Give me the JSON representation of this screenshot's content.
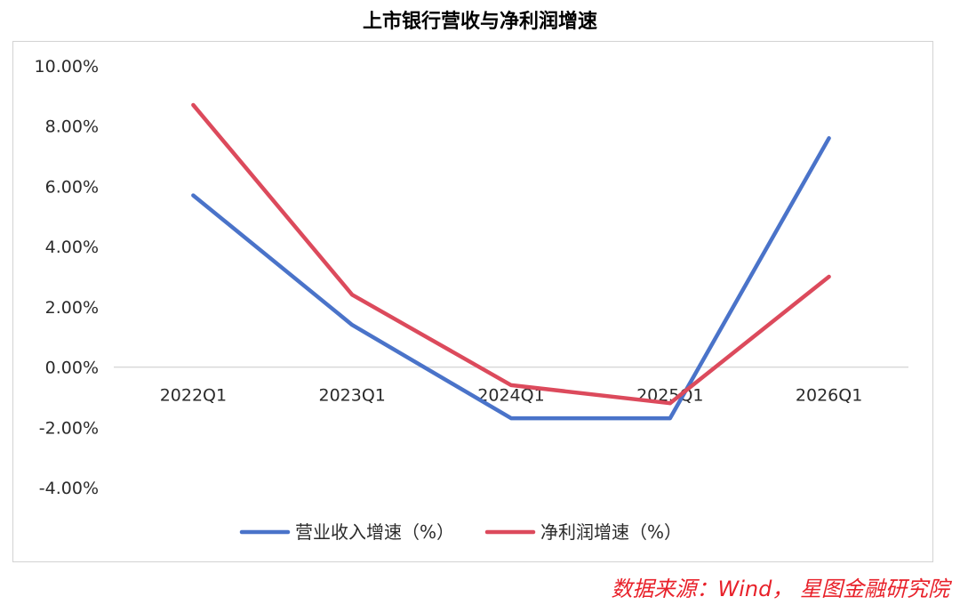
{
  "chart_data": {
    "type": "line",
    "title": "上市银行营收与净利润增速",
    "categories": [
      "2022Q1",
      "2023Q1",
      "2024Q1",
      "2025Q1",
      "2026Q1"
    ],
    "y_tick_labels": [
      "10.00%",
      "8.00%",
      "6.00%",
      "4.00%",
      "2.00%",
      "0.00%",
      "-2.00%",
      "-4.00%"
    ],
    "y_ticks": [
      10,
      8,
      6,
      4,
      2,
      0,
      -2,
      -4
    ],
    "ylim": [
      -4,
      10
    ],
    "grid": false,
    "legend_position": "bottom",
    "series": [
      {
        "name": "营业收入增速（%）",
        "color": "#4a73c9",
        "values": [
          5.7,
          1.4,
          -1.7,
          -1.7,
          7.6
        ]
      },
      {
        "name": "净利润增速（%）",
        "color": "#dc4a5c",
        "values": [
          8.7,
          2.4,
          -0.6,
          -1.2,
          3.0
        ]
      }
    ]
  },
  "source_note": "数据来源：Wind， 星图金融研究院"
}
